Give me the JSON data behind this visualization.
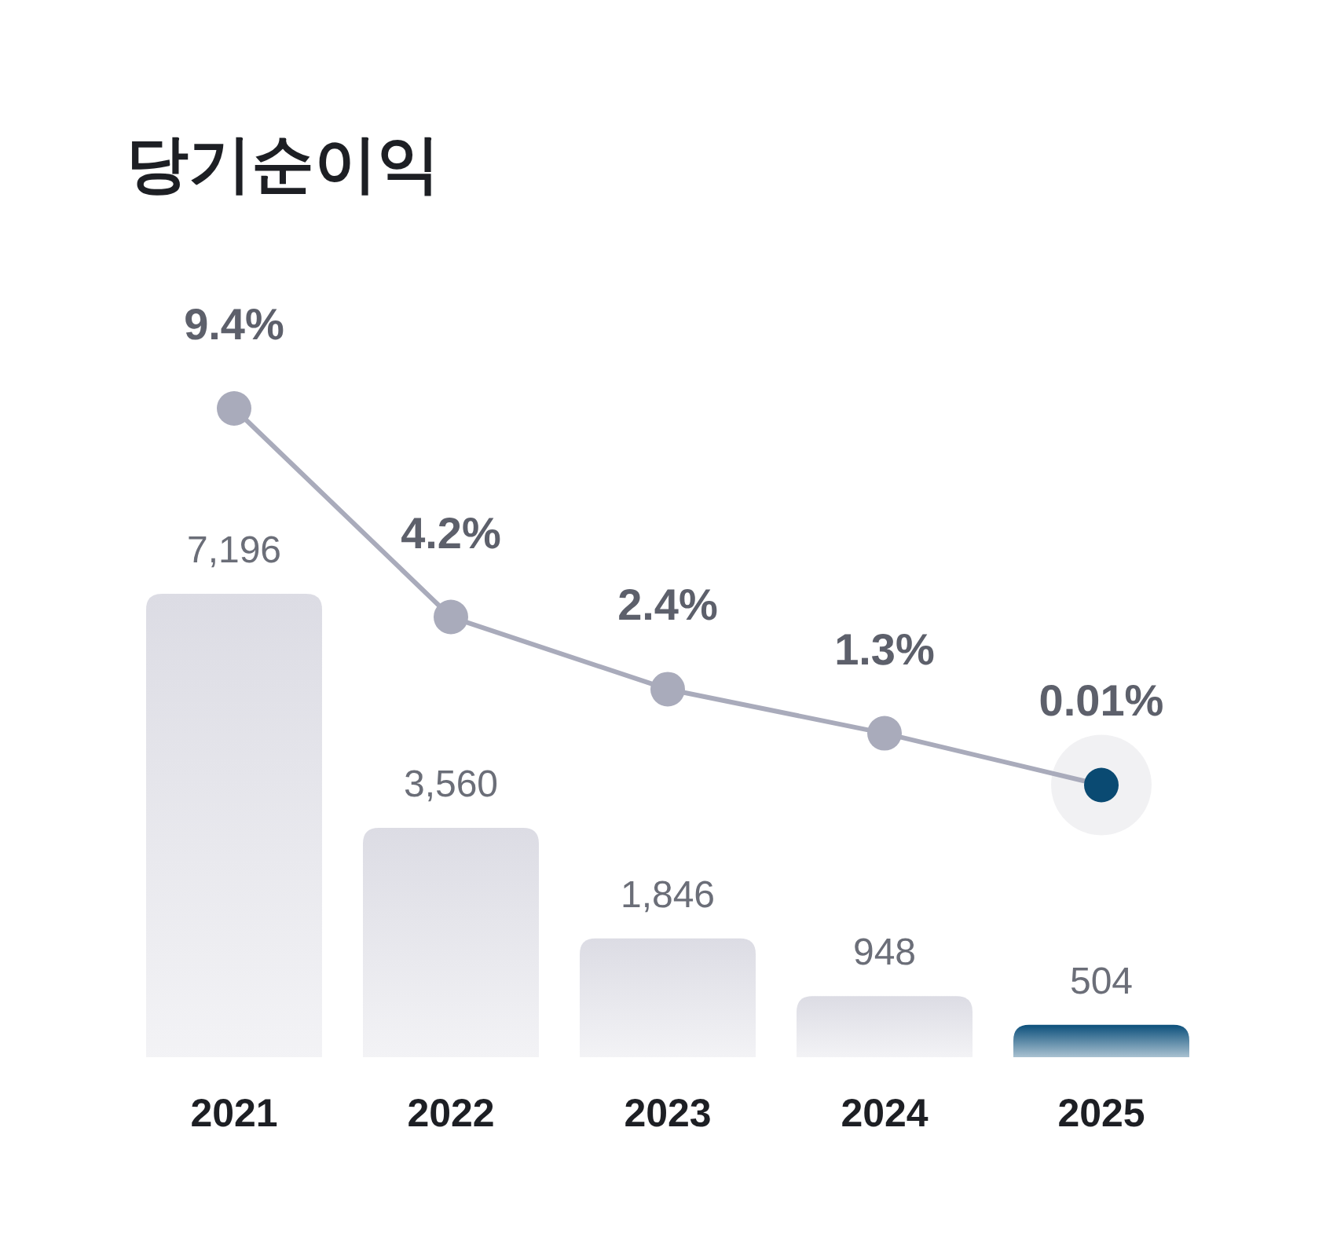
{
  "chart_data": {
    "type": "bar",
    "title": "당기순이익",
    "categories": [
      "2021",
      "2022",
      "2023",
      "2024",
      "2025"
    ],
    "marker": "circle",
    "series": [
      {
        "colors": [
          "#dcdce4",
          "#dcdce4",
          "#dcdce4",
          "#dcdce4",
          "#0b4f7b"
        ],
        "values": [
          7196,
          3560,
          1846,
          948,
          504
        ],
        "value_labels": [
          "7,196",
          "3,560",
          "1,846",
          "948",
          "504"
        ]
      },
      {
        "type": "line",
        "axis": "y2",
        "color": "#a9abbb",
        "colors": [
          "#a9abbb",
          "#a9abbb",
          "#a9abbb",
          "#a9abbb",
          "#0a4a72"
        ],
        "values": [
          9.4,
          4.2,
          2.4,
          1.3,
          0.01
        ],
        "value_labels": [
          "9.4%",
          "4.2%",
          "2.4%",
          "1.3%",
          "0.01%"
        ]
      }
    ]
  }
}
